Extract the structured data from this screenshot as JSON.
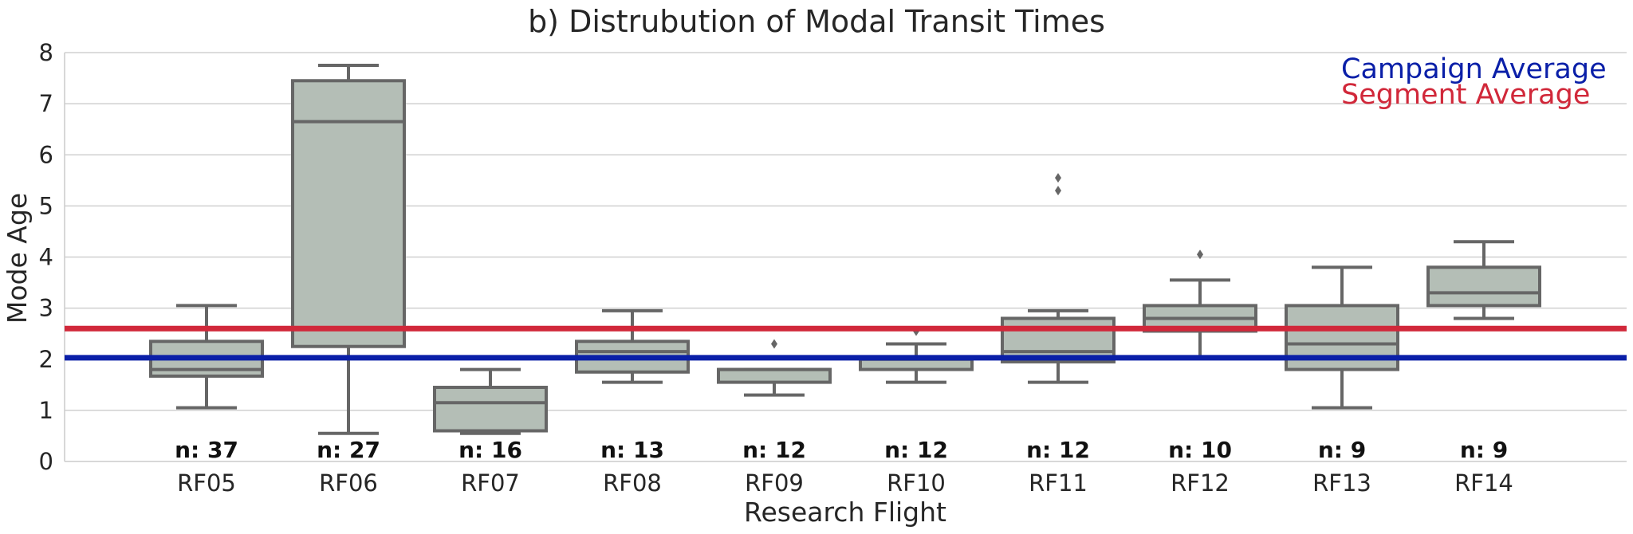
{
  "chart_data": {
    "type": "box",
    "title": "b) Distrubution of Modal Transit Times",
    "xlabel": "Research Flight",
    "ylabel": "Mode Age",
    "ylim": [
      0,
      8
    ],
    "yticks": [
      "0",
      "1",
      "2",
      "3",
      "4",
      "5",
      "6",
      "7",
      "8"
    ],
    "grid": "horizontal",
    "box_color": "#b4beb6",
    "box_edge_color": "#666666",
    "categories": [
      "RF05",
      "RF06",
      "RF07",
      "RF08",
      "RF09",
      "RF10",
      "RF11",
      "RF12",
      "RF13",
      "RF14"
    ],
    "n_labels": [
      "n: 37",
      "n: 27",
      "n: 16",
      "n: 13",
      "n: 12",
      "n: 12",
      "n: 12",
      "n: 10",
      "n: 9",
      "n: 9"
    ],
    "boxes": [
      {
        "whislo": 1.05,
        "q1": 1.67,
        "med": 1.8,
        "q3": 2.35,
        "whishi": 3.05,
        "fliers": []
      },
      {
        "whislo": 0.55,
        "q1": 2.25,
        "med": 6.65,
        "q3": 7.45,
        "whishi": 7.75,
        "fliers": []
      },
      {
        "whislo": 0.55,
        "q1": 0.6,
        "med": 1.15,
        "q3": 1.45,
        "whishi": 1.8,
        "fliers": []
      },
      {
        "whislo": 1.55,
        "q1": 1.75,
        "med": 2.15,
        "q3": 2.35,
        "whishi": 2.95,
        "fliers": []
      },
      {
        "whislo": 1.3,
        "q1": 1.55,
        "med": 1.8,
        "q3": 1.8,
        "whishi": 1.8,
        "fliers": [
          2.3
        ]
      },
      {
        "whislo": 1.55,
        "q1": 1.8,
        "med": 2.0,
        "q3": 2.05,
        "whishi": 2.3,
        "fliers": [
          2.55
        ]
      },
      {
        "whislo": 1.55,
        "q1": 1.95,
        "med": 2.15,
        "q3": 2.8,
        "whishi": 2.95,
        "fliers": [
          5.3,
          5.55
        ]
      },
      {
        "whislo": 2.05,
        "q1": 2.55,
        "med": 2.8,
        "q3": 3.05,
        "whishi": 3.55,
        "fliers": [
          4.05
        ]
      },
      {
        "whislo": 1.05,
        "q1": 1.8,
        "med": 2.3,
        "q3": 3.05,
        "whishi": 3.8,
        "fliers": []
      },
      {
        "whislo": 2.8,
        "q1": 3.05,
        "med": 3.3,
        "q3": 3.8,
        "whishi": 4.3,
        "fliers": []
      }
    ],
    "reference_lines": [
      {
        "name": "Campaign Average",
        "value": 2.03,
        "color": "#0a1fa8"
      },
      {
        "name": "Segment Average",
        "value": 2.6,
        "color": "#d1283a"
      }
    ],
    "legend_position": "top-right"
  }
}
